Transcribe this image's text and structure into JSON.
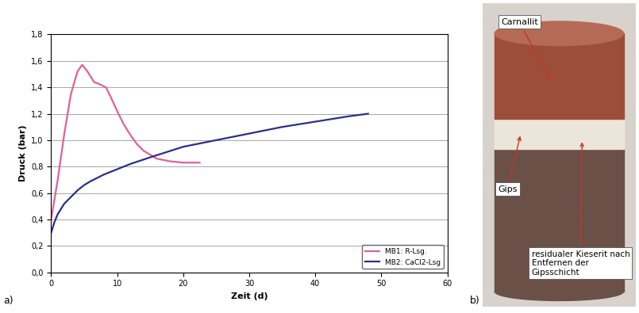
{
  "chart_data": {
    "type": "line",
    "x_label": "Zeit (d)",
    "y_label": "Druck (bar)",
    "xlim": [
      0,
      60
    ],
    "xticks": [
      0,
      10,
      20,
      30,
      40,
      50,
      60
    ],
    "ylim": [
      0,
      1.8
    ],
    "yticks": [
      {
        "value": 0.0,
        "label": "0,0"
      },
      {
        "value": 0.2,
        "label": "0,2"
      },
      {
        "value": 0.4,
        "label": "0,4"
      },
      {
        "value": 0.6,
        "label": "0,6"
      },
      {
        "value": 0.8,
        "label": "0,8"
      },
      {
        "value": 1.0,
        "label": "1,0"
      },
      {
        "value": 1.2,
        "label": "1,2"
      },
      {
        "value": 1.4,
        "label": "1,4"
      },
      {
        "value": 1.6,
        "label": "1,6"
      },
      {
        "value": 1.8,
        "label": "1,8"
      }
    ],
    "grid": true,
    "legend": "lower right",
    "series": [
      {
        "name": "MB1: R-Lsg.",
        "color": "#e0609a",
        "x": [
          0,
          1,
          2,
          3,
          4,
          4.7,
          5.5,
          6.5,
          7.5,
          8.3,
          9,
          10,
          11,
          12,
          13,
          14,
          15,
          16,
          17,
          18,
          20,
          22.5
        ],
        "values": [
          0.4,
          0.7,
          1.05,
          1.35,
          1.52,
          1.57,
          1.52,
          1.44,
          1.42,
          1.4,
          1.33,
          1.22,
          1.12,
          1.04,
          0.97,
          0.92,
          0.89,
          0.86,
          0.85,
          0.84,
          0.83,
          0.83
        ]
      },
      {
        "name": "MB2: CaCl2-Lsg",
        "color": "#2b2e8c",
        "x": [
          0,
          0.5,
          1,
          2,
          3,
          4,
          5,
          6,
          8,
          10,
          12,
          15,
          20,
          25,
          30,
          35,
          40,
          45,
          48
        ],
        "values": [
          0.3,
          0.38,
          0.44,
          0.52,
          0.57,
          0.62,
          0.66,
          0.69,
          0.74,
          0.78,
          0.82,
          0.87,
          0.95,
          1.0,
          1.05,
          1.1,
          1.14,
          1.18,
          1.2
        ]
      }
    ]
  },
  "panels": [
    "a)",
    "b)"
  ],
  "photo": {
    "labels": [
      "Carnallit",
      "Gips",
      "residualer Kieserit nach Entfernen der Gipsschicht"
    ]
  }
}
